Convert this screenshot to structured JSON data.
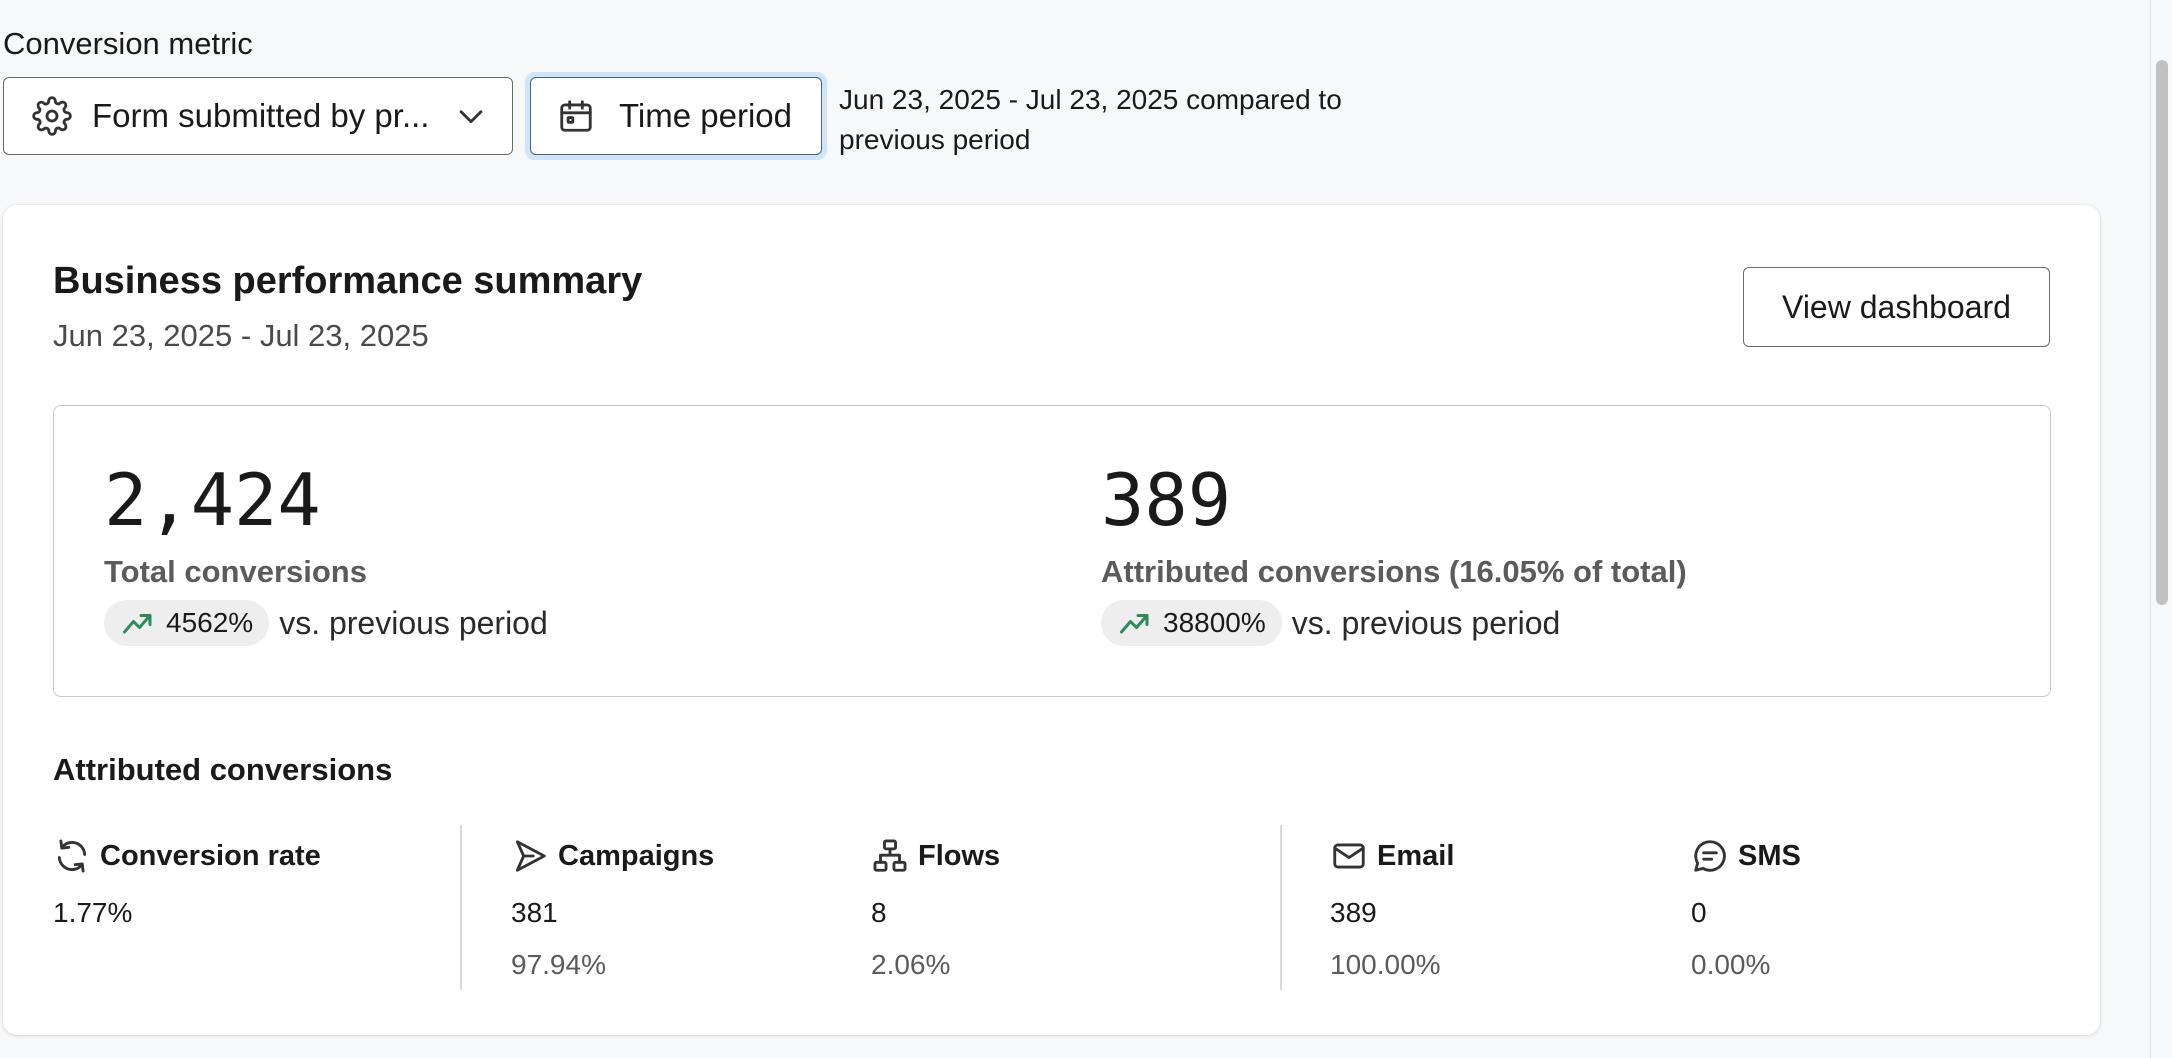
{
  "conversion_metric": {
    "label": "Conversion metric",
    "selected": "Form submitted by pr..."
  },
  "time_period": {
    "button_label": "Time period",
    "description": "Jun 23, 2025 - Jul 23, 2025 compared to previous period"
  },
  "summary": {
    "title": "Business performance summary",
    "date_range": "Jun 23, 2025 - Jul 23, 2025",
    "view_button": "View dashboard",
    "kpis": [
      {
        "value": "2,424",
        "label": "Total conversions",
        "change": "4562%",
        "comparison": "vs. previous period"
      },
      {
        "value": "389",
        "label": "Attributed conversions (16.05% of total)",
        "change": "38800%",
        "comparison": "vs. previous period"
      }
    ],
    "attributed": {
      "title": "Attributed conversions",
      "stats": [
        {
          "icon": "refresh-icon",
          "label": "Conversion rate",
          "value": "1.77%",
          "percent": ""
        },
        {
          "icon": "send-icon",
          "label": "Campaigns",
          "value": "381",
          "percent": "97.94%"
        },
        {
          "icon": "flow-icon",
          "label": "Flows",
          "value": "8",
          "percent": "2.06%"
        },
        {
          "icon": "mail-icon",
          "label": "Email",
          "value": "389",
          "percent": "100.00%"
        },
        {
          "icon": "sms-icon",
          "label": "SMS",
          "value": "0",
          "percent": "0.00%"
        }
      ]
    }
  },
  "colors": {
    "trend_up": "#2e8b57",
    "focus_ring": "#cfe4f7"
  }
}
